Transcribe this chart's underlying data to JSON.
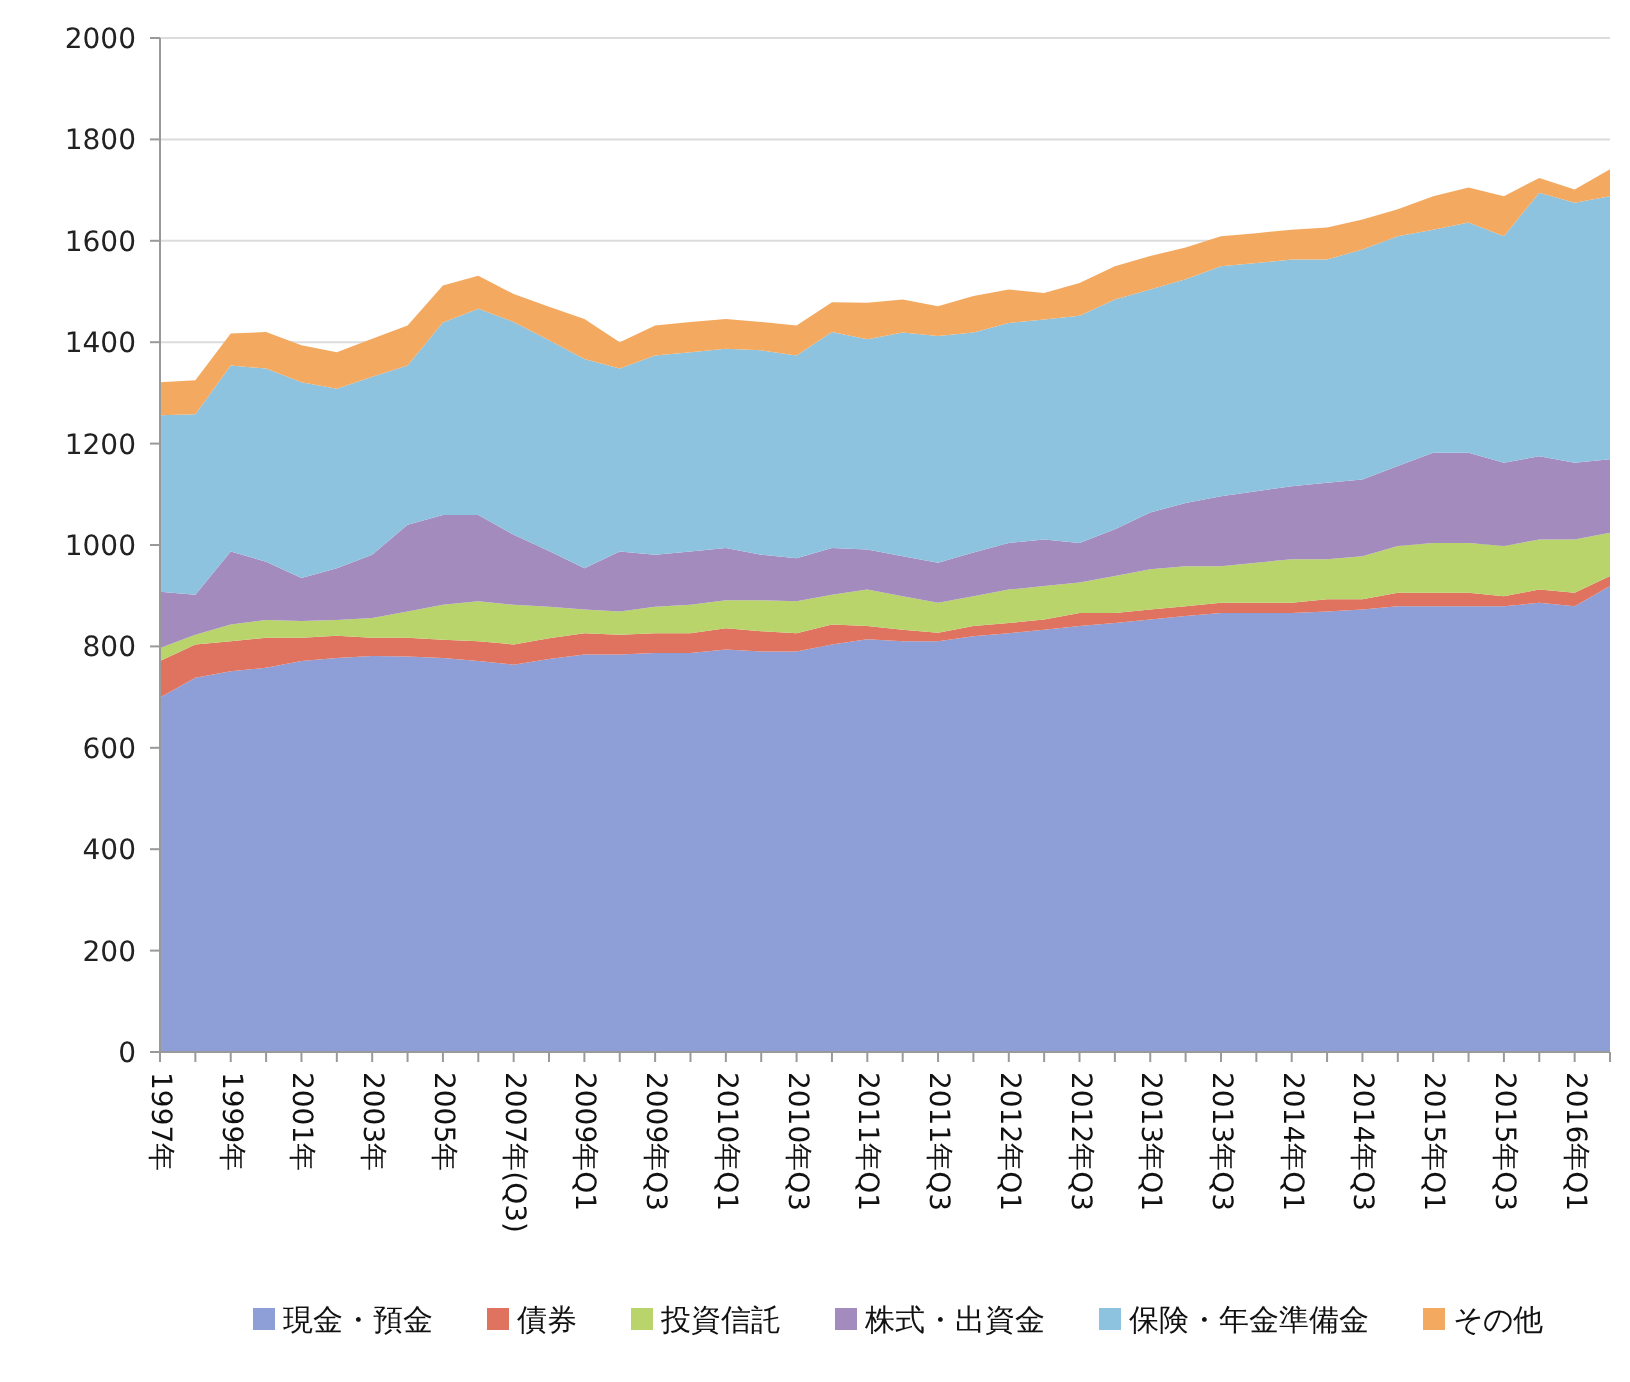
{
  "chart_data": {
    "type": "area",
    "stacked": true,
    "categories": [
      "1997年",
      null,
      "1999年",
      null,
      "2001年",
      null,
      "2003年",
      null,
      "2005年",
      null,
      "2007年(Q3)",
      null,
      "2009年Q1",
      null,
      "2009年Q3",
      null,
      "2010年Q1",
      null,
      "2010年Q3",
      null,
      "2011年Q1",
      null,
      "2011年Q3",
      null,
      "2012年Q1",
      null,
      "2012年Q3",
      null,
      "2013年Q1",
      null,
      "2013年Q3",
      null,
      "2014年Q1",
      null,
      "2014年Q3",
      null,
      "2015年Q1",
      null,
      "2015年Q3",
      null,
      "2016年Q1",
      null
    ],
    "series": [
      {
        "name": "現金・預金",
        "color": "#8d9fd6",
        "values": [
          699,
          738,
          751,
          758,
          771,
          777,
          781,
          780,
          777,
          771,
          764,
          775,
          784,
          784,
          787,
          787,
          794,
          790,
          790,
          804,
          814,
          810,
          810,
          820,
          826,
          833,
          840,
          846,
          853,
          860,
          866,
          866,
          866,
          869,
          873,
          879,
          879,
          879,
          879,
          886,
          879,
          919
        ]
      },
      {
        "name": "債券",
        "color": "#e0735f",
        "values": [
          72,
          66,
          59,
          59,
          46,
          44,
          36,
          37,
          36,
          39,
          40,
          41,
          42,
          39,
          39,
          39,
          42,
          40,
          36,
          39,
          26,
          23,
          17,
          20,
          20,
          20,
          26,
          20,
          20,
          19,
          20,
          20,
          20,
          24,
          20,
          27,
          27,
          27,
          20,
          26,
          27,
          20
        ]
      },
      {
        "name": "投資信託",
        "color": "#b9d46a",
        "values": [
          26,
          19,
          33,
          35,
          33,
          31,
          39,
          52,
          69,
          79,
          78,
          62,
          47,
          46,
          52,
          56,
          55,
          61,
          63,
          59,
          72,
          66,
          59,
          59,
          66,
          66,
          60,
          73,
          79,
          79,
          72,
          79,
          86,
          79,
          85,
          92,
          98,
          98,
          99,
          99,
          105,
          85
        ]
      },
      {
        "name": "株式・出資金",
        "color": "#a38bbd",
        "values": [
          111,
          79,
          144,
          115,
          85,
          102,
          125,
          171,
          177,
          170,
          138,
          110,
          81,
          118,
          103,
          105,
          103,
          90,
          85,
          92,
          79,
          79,
          79,
          86,
          92,
          92,
          78,
          92,
          112,
          125,
          138,
          141,
          144,
          151,
          151,
          158,
          178,
          178,
          164,
          164,
          151,
          145
        ]
      },
      {
        "name": "保険・年金準備金",
        "color": "#8ec3e0",
        "values": [
          348,
          356,
          367,
          381,
          386,
          354,
          351,
          314,
          380,
          407,
          420,
          416,
          413,
          361,
          393,
          393,
          393,
          403,
          400,
          426,
          415,
          441,
          447,
          434,
          434,
          434,
          448,
          453,
          440,
          441,
          454,
          450,
          447,
          440,
          454,
          453,
          440,
          454,
          447,
          520,
          513,
          519
        ]
      },
      {
        "name": "その他",
        "color": "#f3a960",
        "values": [
          65,
          67,
          63,
          72,
          73,
          72,
          75,
          79,
          73,
          65,
          55,
          66,
          79,
          52,
          59,
          60,
          59,
          56,
          59,
          59,
          72,
          65,
          59,
          72,
          66,
          52,
          65,
          66,
          66,
          63,
          59,
          59,
          59,
          63,
          59,
          53,
          66,
          69,
          79,
          29,
          26,
          53
        ]
      }
    ],
    "ylim": [
      0,
      2000
    ],
    "yticks": [
      0,
      200,
      400,
      600,
      800,
      1000,
      1200,
      1400,
      1600,
      1800,
      2000
    ],
    "grid": "y",
    "legend": "bottom"
  }
}
